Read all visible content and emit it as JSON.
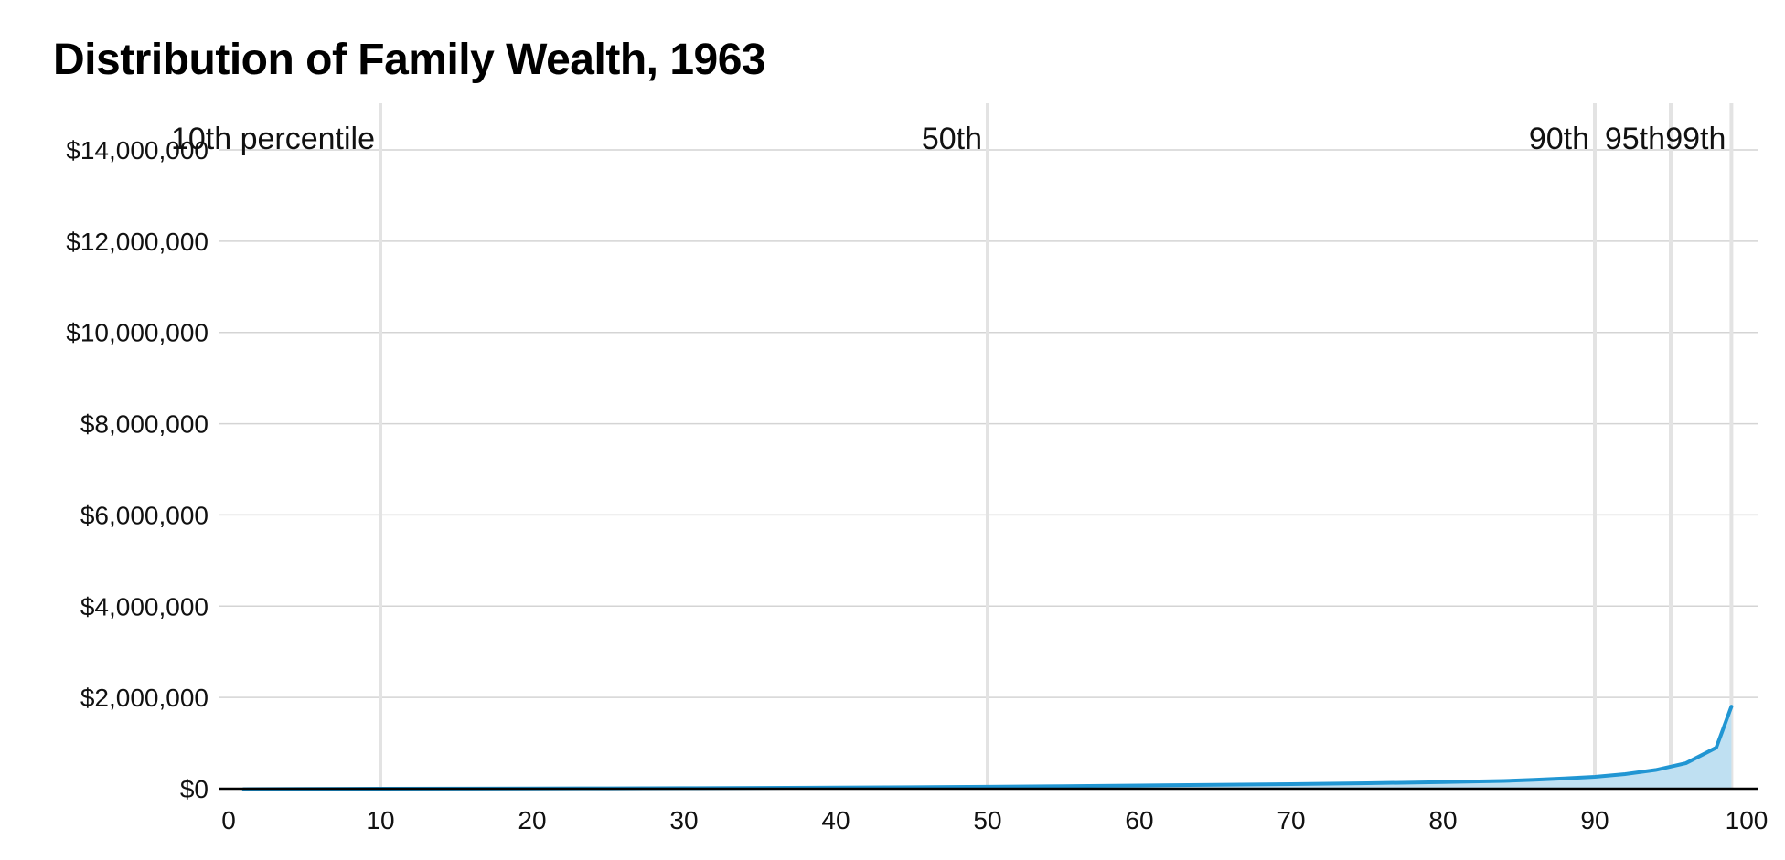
{
  "chart_data": {
    "type": "area",
    "title": "Distribution of Family Wealth, 1963",
    "xlabel": "",
    "ylabel": "",
    "xlim": [
      0,
      100
    ],
    "ylim": [
      0,
      14000000
    ],
    "grid": true,
    "x_ticks": [
      0,
      10,
      20,
      30,
      40,
      50,
      60,
      70,
      80,
      90,
      100
    ],
    "y_ticks": [
      0,
      2000000,
      4000000,
      6000000,
      8000000,
      10000000,
      12000000,
      14000000
    ],
    "y_tick_labels": [
      "$0",
      "$2,000,000",
      "$4,000,000",
      "$6,000,000",
      "$8,000,000",
      "$10,000,000",
      "$12,000,000",
      "$14,000,000"
    ],
    "percentile_markers": [
      {
        "x": 10,
        "label": "10th percentile"
      },
      {
        "x": 50,
        "label": "50th"
      },
      {
        "x": 90,
        "label": "90th"
      },
      {
        "x": 95,
        "label": "95th"
      },
      {
        "x": 99,
        "label": "99th"
      }
    ],
    "series": [
      {
        "color": "#2196d3",
        "fill": "#bfe0f2",
        "x": [
          1,
          5,
          10,
          15,
          20,
          25,
          30,
          35,
          40,
          45,
          50,
          55,
          60,
          65,
          70,
          75,
          80,
          84,
          86,
          88,
          90,
          92,
          94,
          96,
          98,
          99
        ],
        "values": [
          -10000,
          -5000,
          0,
          2000,
          5000,
          8000,
          12000,
          18000,
          25000,
          33000,
          43000,
          55000,
          70000,
          85000,
          100000,
          120000,
          145000,
          170000,
          195000,
          225000,
          260000,
          320000,
          410000,
          560000,
          900000,
          1800000
        ]
      }
    ]
  }
}
